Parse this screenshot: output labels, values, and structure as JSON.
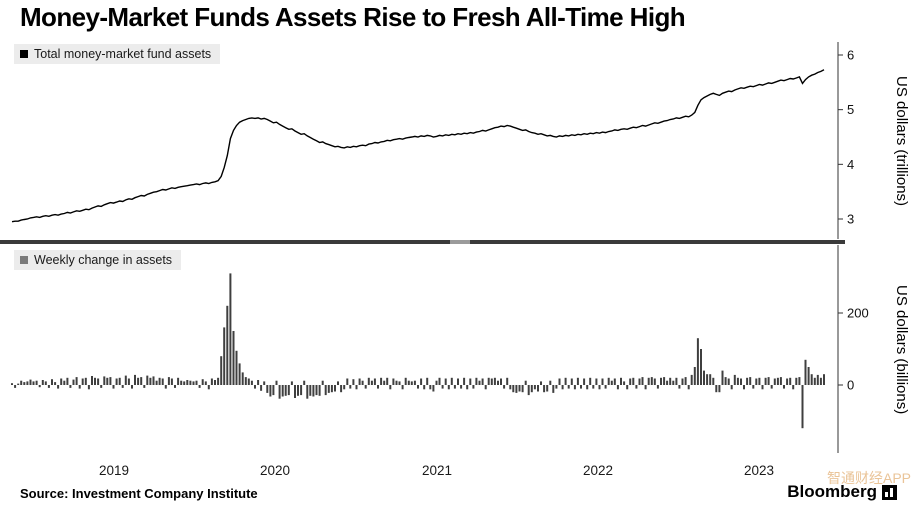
{
  "title": "Money-Market Funds Assets Rise to Fresh All-Time High",
  "source": "Source: Investment Company Institute",
  "brand": "Bloomberg",
  "watermark": "智通财经APP",
  "colors": {
    "line": "#000000",
    "bar": "#3f3f3f",
    "bar_legend": "#7a7a7a",
    "axis": "#333333",
    "divider": "#3a3a3a",
    "divider_handle": "#9b9b9b",
    "legend_bg": "#ececec",
    "watermark": "rgba(228,179,123,0.78)"
  },
  "chart_data": [
    {
      "type": "line",
      "title": "Total money-market fund assets",
      "ylabel": "US dollars (trillions)",
      "yticks": [
        3,
        4,
        5,
        6
      ],
      "ylim": [
        2.65,
        6.25
      ],
      "x_domain": [
        2018.87,
        2023.9
      ],
      "x_ticks": [
        2019,
        2020,
        2021,
        2022,
        2023
      ],
      "x_unit": "weekly",
      "grid": false,
      "legend_position": "top-left",
      "values": [
        2.95,
        2.96,
        2.96,
        2.98,
        2.99,
        3.0,
        3.02,
        3.03,
        3.04,
        3.03,
        3.05,
        3.06,
        3.05,
        3.07,
        3.08,
        3.07,
        3.09,
        3.1,
        3.12,
        3.11,
        3.13,
        3.15,
        3.14,
        3.16,
        3.18,
        3.17,
        3.2,
        3.22,
        3.24,
        3.23,
        3.26,
        3.28,
        3.3,
        3.29,
        3.31,
        3.33,
        3.32,
        3.35,
        3.37,
        3.36,
        3.39,
        3.41,
        3.43,
        3.42,
        3.45,
        3.47,
        3.49,
        3.5,
        3.52,
        3.54,
        3.53,
        3.55,
        3.57,
        3.56,
        3.58,
        3.59,
        3.6,
        3.61,
        3.62,
        3.63,
        3.64,
        3.63,
        3.65,
        3.66,
        3.65,
        3.67,
        3.68,
        3.7,
        3.78,
        3.94,
        4.16,
        4.47,
        4.62,
        4.71,
        4.77,
        4.8,
        4.82,
        4.84,
        4.85,
        4.84,
        4.85,
        4.83,
        4.84,
        4.82,
        4.79,
        4.76,
        4.77,
        4.73,
        4.7,
        4.67,
        4.64,
        4.65,
        4.61,
        4.58,
        4.55,
        4.56,
        4.52,
        4.49,
        4.46,
        4.43,
        4.4,
        4.41,
        4.38,
        4.36,
        4.34,
        4.32,
        4.33,
        4.31,
        4.3,
        4.32,
        4.31,
        4.33,
        4.32,
        4.34,
        4.35,
        4.34,
        4.37,
        4.38,
        4.4,
        4.39,
        4.41,
        4.42,
        4.44,
        4.43,
        4.45,
        4.46,
        4.47,
        4.46,
        4.48,
        4.49,
        4.5,
        4.51,
        4.5,
        4.52,
        4.51,
        4.53,
        4.52,
        4.5,
        4.51,
        4.53,
        4.52,
        4.54,
        4.53,
        4.55,
        4.54,
        4.56,
        4.55,
        4.57,
        4.56,
        4.58,
        4.57,
        4.59,
        4.6,
        4.62,
        4.61,
        4.63,
        4.65,
        4.67,
        4.68,
        4.7,
        4.69,
        4.71,
        4.7,
        4.68,
        4.66,
        4.64,
        4.62,
        4.63,
        4.6,
        4.58,
        4.57,
        4.55,
        4.56,
        4.54,
        4.52,
        4.53,
        4.51,
        4.5,
        4.52,
        4.51,
        4.53,
        4.52,
        4.54,
        4.53,
        4.55,
        4.54,
        4.56,
        4.55,
        4.57,
        4.56,
        4.58,
        4.57,
        4.59,
        4.58,
        4.6,
        4.61,
        4.63,
        4.62,
        4.64,
        4.65,
        4.64,
        4.66,
        4.68,
        4.67,
        4.69,
        4.71,
        4.7,
        4.72,
        4.74,
        4.76,
        4.75,
        4.77,
        4.79,
        4.8,
        4.82,
        4.83,
        4.85,
        4.84,
        4.86,
        4.88,
        4.87,
        4.9,
        4.95,
        5.08,
        5.18,
        5.22,
        5.25,
        5.28,
        5.3,
        5.28,
        5.26,
        5.3,
        5.32,
        5.34,
        5.33,
        5.36,
        5.38,
        5.4,
        5.39,
        5.41,
        5.43,
        5.42,
        5.44,
        5.46,
        5.45,
        5.47,
        5.49,
        5.48,
        5.5,
        5.52,
        5.54,
        5.53,
        5.55,
        5.57,
        5.56,
        5.58,
        5.6,
        5.48,
        5.55,
        5.6,
        5.63,
        5.65,
        5.68,
        5.7,
        5.73
      ]
    },
    {
      "type": "bar",
      "title": "Weekly change in assets",
      "ylabel": "US dollars (billions)",
      "yticks": [
        0,
        200
      ],
      "ylim": [
        -160,
        330
      ],
      "x_domain": [
        2018.87,
        2023.9
      ],
      "x_unit": "weekly",
      "grid": false,
      "legend_position": "top-left",
      "values": [
        5,
        -8,
        4,
        12,
        8,
        10,
        15,
        10,
        12,
        -6,
        14,
        10,
        -8,
        16,
        8,
        -10,
        18,
        12,
        20,
        -8,
        15,
        22,
        -10,
        18,
        20,
        -12,
        25,
        20,
        18,
        -8,
        24,
        20,
        22,
        -10,
        18,
        20,
        -8,
        26,
        18,
        -10,
        28,
        20,
        22,
        -8,
        26,
        20,
        24,
        12,
        20,
        18,
        -10,
        22,
        18,
        -8,
        20,
        12,
        10,
        14,
        12,
        10,
        12,
        -8,
        16,
        10,
        -12,
        18,
        14,
        20,
        80,
        160,
        220,
        310,
        150,
        95,
        60,
        35,
        22,
        18,
        12,
        -10,
        14,
        -16,
        10,
        -22,
        -32,
        -28,
        12,
        -38,
        -32,
        -30,
        -28,
        10,
        -36,
        -30,
        -28,
        12,
        -38,
        -30,
        -32,
        -28,
        -30,
        12,
        -28,
        -22,
        -20,
        -18,
        10,
        -20,
        -12,
        18,
        -10,
        16,
        -12,
        18,
        12,
        -10,
        20,
        12,
        18,
        -10,
        20,
        12,
        20,
        -12,
        18,
        12,
        10,
        -12,
        20,
        12,
        10,
        12,
        -10,
        18,
        -12,
        20,
        -12,
        -18,
        12,
        20,
        -10,
        18,
        -12,
        20,
        -10,
        18,
        -10,
        20,
        -12,
        18,
        -10,
        20,
        12,
        18,
        -12,
        20,
        18,
        20,
        12,
        18,
        -10,
        20,
        -12,
        -20,
        -22,
        -18,
        -20,
        12,
        -28,
        -20,
        -12,
        -18,
        10,
        -20,
        -18,
        12,
        -22,
        -10,
        18,
        -12,
        20,
        -10,
        18,
        -12,
        20,
        -10,
        18,
        -12,
        20,
        -10,
        18,
        -12,
        18,
        -10,
        20,
        12,
        18,
        -12,
        20,
        10,
        -12,
        18,
        20,
        -10,
        18,
        22,
        -12,
        20,
        22,
        18,
        -10,
        20,
        22,
        12,
        20,
        12,
        20,
        -10,
        18,
        22,
        -12,
        28,
        50,
        130,
        100,
        40,
        30,
        30,
        20,
        -20,
        -20,
        40,
        22,
        18,
        -12,
        28,
        20,
        18,
        -12,
        20,
        22,
        -10,
        18,
        20,
        -12,
        20,
        22,
        -10,
        18,
        20,
        22,
        -10,
        18,
        20,
        -12,
        20,
        22,
        -120,
        70,
        50,
        30,
        20,
        28,
        20,
        30
      ]
    }
  ]
}
